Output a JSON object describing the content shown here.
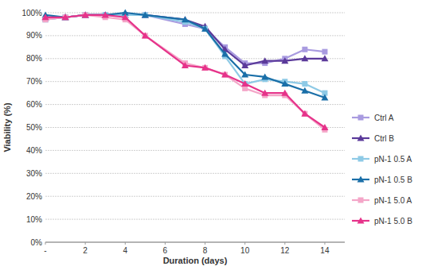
{
  "chart_data": {
    "type": "line",
    "x_label": "Duration (days)",
    "y_label": "Viability (%)",
    "x": [
      0,
      1,
      2,
      3,
      4,
      5,
      7,
      8,
      9,
      10,
      11,
      12,
      13,
      14
    ],
    "series": [
      {
        "name": "Ctrl A",
        "color": "#a99be0",
        "marker": "square",
        "values": [
          97,
          98,
          99,
          99,
          99,
          99,
          95,
          93,
          85,
          78,
          78,
          80,
          84,
          83
        ]
      },
      {
        "name": "Ctrl B",
        "color": "#5b3a9a",
        "marker": "triangle",
        "values": [
          98,
          98,
          99,
          99,
          99,
          99,
          97,
          94,
          84,
          77,
          79,
          79,
          80,
          80
        ]
      },
      {
        "name": "pN-1 0.5 A",
        "color": "#8ecae6",
        "marker": "square",
        "values": [
          97,
          98,
          99,
          99,
          99,
          99,
          96,
          93,
          81,
          69,
          71,
          70,
          69,
          65
        ]
      },
      {
        "name": "pN-1 0.5 B",
        "color": "#1a6fa8",
        "marker": "triangle",
        "values": [
          99,
          98,
          99,
          99,
          100,
          99,
          97,
          93,
          82,
          73,
          72,
          69,
          66,
          63
        ]
      },
      {
        "name": "pN-1 5.0 A",
        "color": "#f4a6c8",
        "marker": "square",
        "values": [
          97,
          98,
          99,
          98,
          97,
          90,
          78,
          76,
          73,
          67,
          64,
          64,
          56,
          49
        ]
      },
      {
        "name": "pN-1 5.0 B",
        "color": "#e6338a",
        "marker": "triangle",
        "values": [
          98,
          98,
          99,
          99,
          98,
          90,
          77,
          76,
          73,
          69,
          65,
          65,
          56,
          50
        ]
      }
    ],
    "xlim": [
      0,
      15
    ],
    "xticks": [
      {
        "value": 0,
        "label": "-"
      },
      2,
      4,
      6,
      8,
      10,
      12,
      14
    ],
    "ylim": [
      0,
      100
    ],
    "yticks": [
      {
        "value": 0,
        "label": "0%"
      },
      {
        "value": 10,
        "label": "10%"
      },
      {
        "value": 20,
        "label": "20%"
      },
      {
        "value": 30,
        "label": "30%"
      },
      {
        "value": 40,
        "label": "40%"
      },
      {
        "value": 50,
        "label": "50%"
      },
      {
        "value": 60,
        "label": "60%"
      },
      {
        "value": 70,
        "label": "70%"
      },
      {
        "value": 80,
        "label": "80%"
      },
      {
        "value": 90,
        "label": "90%"
      },
      {
        "value": 100,
        "label": "100%"
      }
    ],
    "grid": true,
    "legend": "right"
  }
}
